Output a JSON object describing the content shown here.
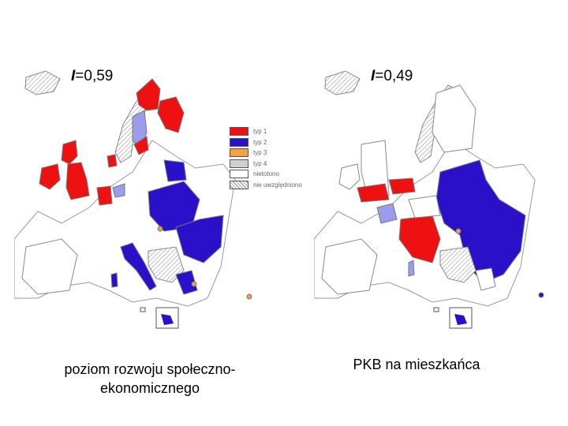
{
  "left_map": {
    "stat_symbol": "I",
    "stat_value": "=0,59",
    "caption_line1": "poziom rozwoju społeczno-",
    "caption_line2": "ekonomicznego"
  },
  "right_map": {
    "stat_symbol": "I",
    "stat_value": "=0,49",
    "caption_line1": "PKB na mieszkańca"
  },
  "legend": {
    "items": [
      {
        "label": "typ 1",
        "color": "#ee1111"
      },
      {
        "label": "typ 2",
        "color": "#2a10c8"
      },
      {
        "label": "typ 3",
        "color": "#f4a048"
      },
      {
        "label": "typ 4",
        "color": "#cfcfcf"
      },
      {
        "label": "nietotono",
        "color": "#ffffff"
      },
      {
        "label": "nie uwzględniono",
        "color": "hatched"
      }
    ]
  },
  "colors": {
    "type1": "#ee1111",
    "type2": "#2a10c8",
    "type3": "#f4a048",
    "type4": "#cfcfcf",
    "light_blue": "#9c9cee",
    "land": "#ffffff",
    "sea": "#ffffff",
    "border": "#777777"
  }
}
